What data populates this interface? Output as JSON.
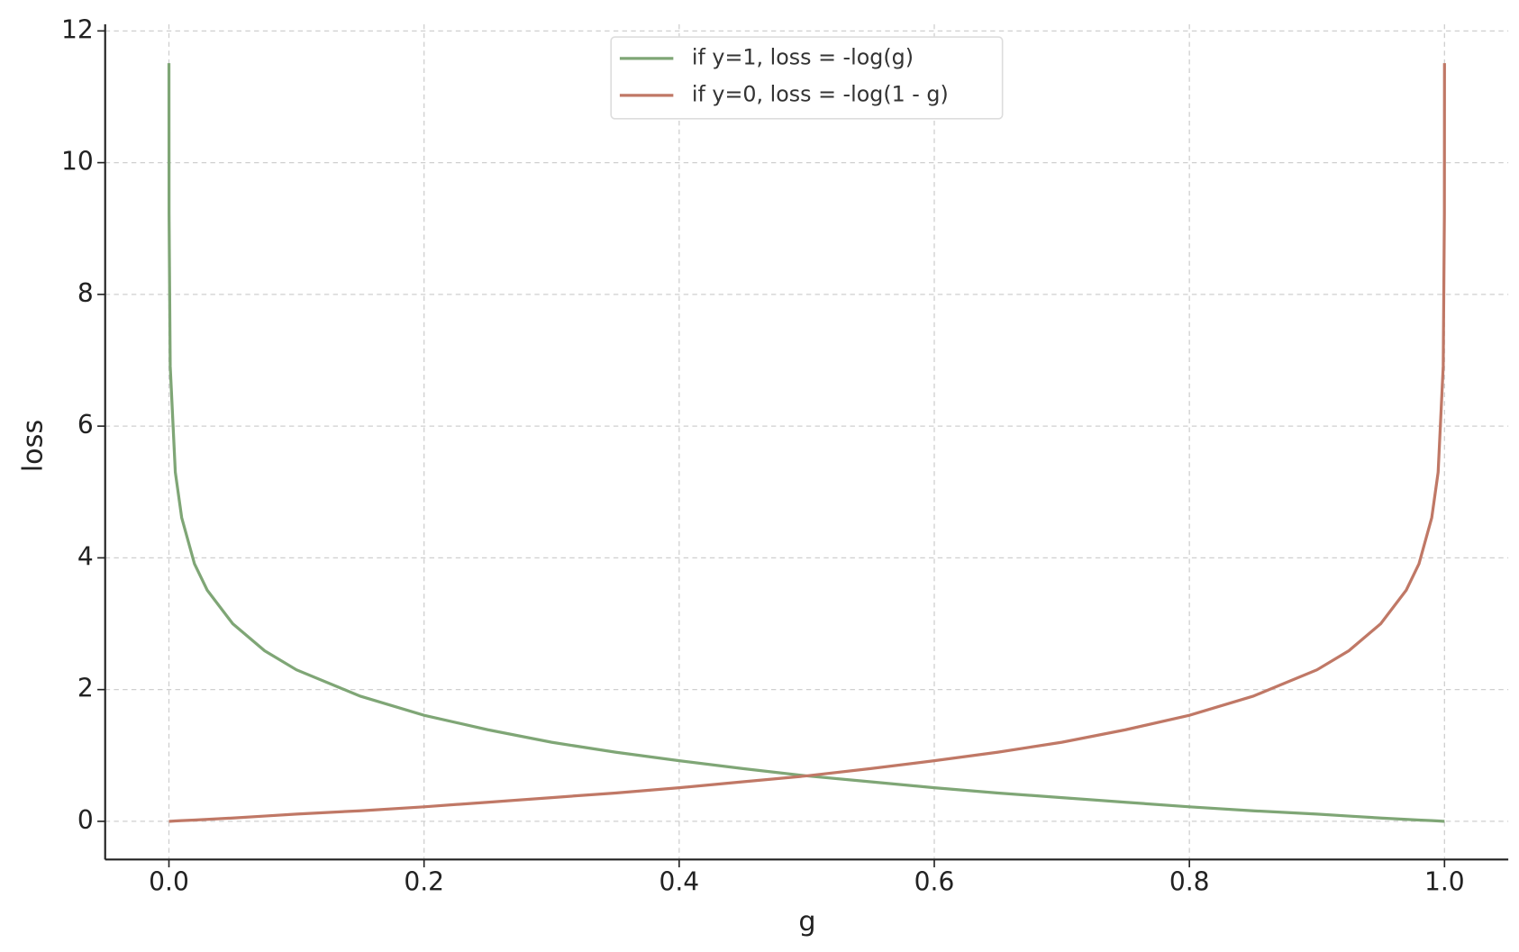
{
  "chart_data": {
    "type": "line",
    "x_label": "g",
    "y_label": "loss",
    "x": [
      1e-05,
      0.0001,
      0.001,
      0.005,
      0.01,
      0.02,
      0.03,
      0.05,
      0.075,
      0.1,
      0.15,
      0.2,
      0.25,
      0.3,
      0.35,
      0.4,
      0.45,
      0.5,
      0.55,
      0.6,
      0.65,
      0.7,
      0.75,
      0.8,
      0.85,
      0.9,
      0.925,
      0.95,
      0.97,
      0.98,
      0.99,
      0.995,
      0.999,
      0.9999,
      0.99999
    ],
    "series": [
      {
        "name": "if y=1, loss = -log(g)",
        "color": "#7fa676",
        "values": [
          11.51,
          9.21,
          6.91,
          5.3,
          4.61,
          3.91,
          3.51,
          3.0,
          2.59,
          2.3,
          1.9,
          1.61,
          1.39,
          1.2,
          1.05,
          0.92,
          0.8,
          0.69,
          0.6,
          0.51,
          0.43,
          0.36,
          0.29,
          0.22,
          0.16,
          0.11,
          0.08,
          0.05,
          0.03,
          0.02,
          0.01,
          0.005,
          0.001,
          0.0001,
          1e-05
        ]
      },
      {
        "name": "if y=0, loss = -log(1 - g)",
        "color": "#c07866",
        "values": [
          1e-05,
          0.0001,
          0.001,
          0.005,
          0.01,
          0.02,
          0.03,
          0.05,
          0.08,
          0.11,
          0.16,
          0.22,
          0.29,
          0.36,
          0.43,
          0.51,
          0.6,
          0.69,
          0.8,
          0.92,
          1.05,
          1.2,
          1.39,
          1.61,
          1.9,
          2.3,
          2.59,
          3.0,
          3.51,
          3.91,
          4.61,
          5.3,
          6.91,
          9.21,
          11.51
        ]
      }
    ],
    "xlim": [
      -0.05,
      1.05
    ],
    "ylim": [
      -0.58,
      12.1
    ],
    "xticks": [
      {
        "value": 0,
        "label": "0.0"
      },
      0.2,
      0.4,
      0.6,
      0.8,
      {
        "value": 1,
        "label": "1.0"
      }
    ],
    "yticks": [
      0,
      2,
      4,
      6,
      8,
      10,
      12
    ],
    "grid": true,
    "legend": "upper center"
  }
}
